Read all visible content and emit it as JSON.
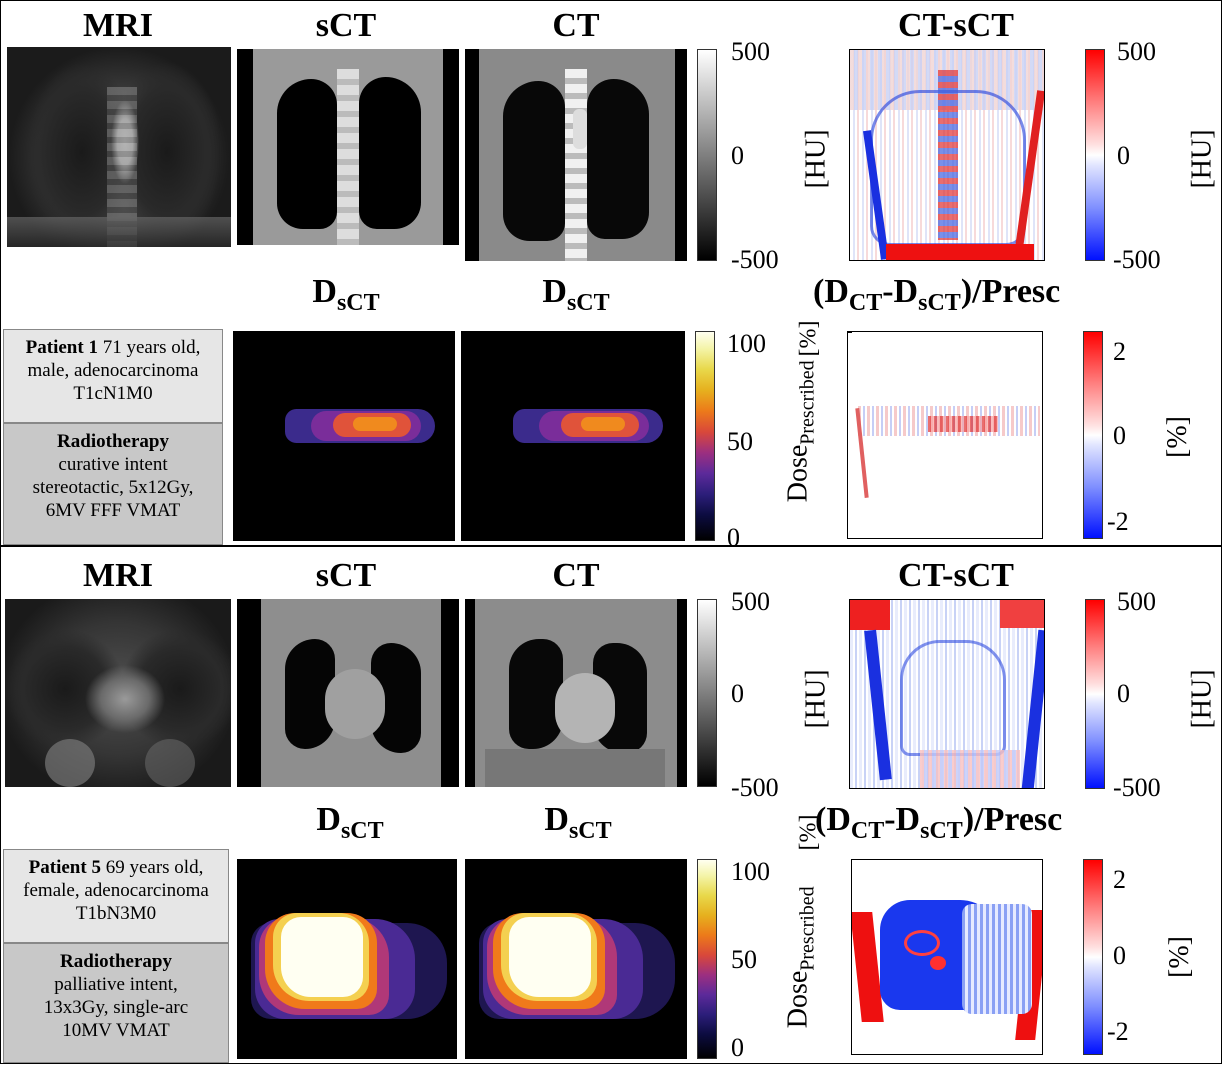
{
  "panels": [
    {
      "titles": {
        "mri": "MRI",
        "sct": "sCT",
        "ct": "CT",
        "ct_sct": "CT-sCT",
        "dose1_main": "D",
        "dose1_sub": "sCT",
        "dose2_main": "D",
        "dose2_sub": "sCT",
        "diff_a": "(D",
        "diff_a_sub": "CT",
        "diff_b": "-D",
        "diff_b_sub": "sCT",
        "diff_c": ")/Presc"
      },
      "hu_colorbar": {
        "ticks": [
          "500",
          "0",
          "-500"
        ],
        "unit": "[HU]"
      },
      "diff_hu_colorbar": {
        "ticks": [
          "500",
          "0",
          "-500"
        ],
        "unit": "[HU]"
      },
      "dose_colorbar": {
        "ticks": [
          "100",
          "50",
          "0"
        ]
      },
      "diff_dose_colorbar": {
        "ticks": [
          "2",
          "0",
          "-2"
        ],
        "unit": "[%]"
      },
      "dose_axis": {
        "label": "Dose",
        "sub": "Prescribed",
        "unit": "[%]"
      },
      "patient": {
        "name": "Patient 1",
        "line1": " 71 years old,",
        "line2": "male,  adenocarcinoma",
        "line3": "T1cN1M0"
      },
      "therapy": {
        "title": "Radiotherapy",
        "line1": "curative intent",
        "line2": "stereotactic, 5x12Gy,",
        "line3": "6MV FFF VMAT"
      }
    },
    {
      "titles": {
        "mri": "MRI",
        "sct": "sCT",
        "ct": "CT",
        "ct_sct": "CT-sCT",
        "dose1_main": "D",
        "dose1_sub": "sCT",
        "dose2_main": "D",
        "dose2_sub": "sCT",
        "diff_a": "(D",
        "diff_a_sub": "CT",
        "diff_b": "-D",
        "diff_b_sub": "sCT",
        "diff_c": ")/Presc"
      },
      "hu_colorbar": {
        "ticks": [
          "500",
          "0",
          "-500"
        ],
        "unit": "[HU]"
      },
      "diff_hu_colorbar": {
        "ticks": [
          "500",
          "0",
          "-500"
        ],
        "unit": "[HU]"
      },
      "dose_colorbar": {
        "ticks": [
          "100",
          "50",
          "0"
        ]
      },
      "diff_dose_colorbar": {
        "ticks": [
          "2",
          "0",
          "-2"
        ],
        "unit": "[%]"
      },
      "dose_axis": {
        "label": "Dose",
        "sub": "Prescribed",
        "unit": "[%]"
      },
      "patient": {
        "name": "Patient 5",
        "line1": " 69 years old,",
        "line2": "female,  adenocarcinoma",
        "line3": "T1bN3M0"
      },
      "therapy": {
        "title": "Radiotherapy",
        "line1": "palliative intent,",
        "line2": "13x3Gy, single-arc",
        "line3": "10MV VMAT"
      }
    }
  ]
}
